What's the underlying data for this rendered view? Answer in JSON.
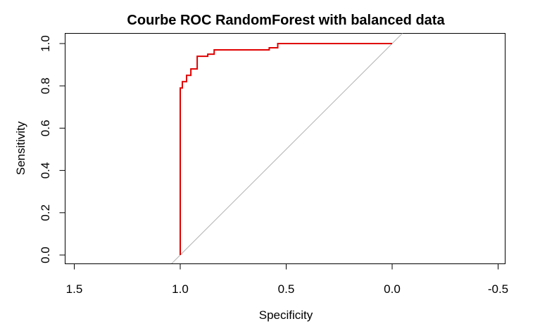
{
  "chart_data": {
    "type": "line",
    "title": "Courbe ROC RandomForest with balanced data",
    "xlabel": "Specificity",
    "ylabel": "Sensitivity",
    "x_reversed": true,
    "xlim": [
      1.5,
      -0.5
    ],
    "ylim": [
      0,
      1
    ],
    "x_ticks": [
      "1.5",
      "1.0",
      "0.5",
      "0.0",
      "-0.5"
    ],
    "y_ticks": [
      "0.0",
      "0.2",
      "0.4",
      "0.6",
      "0.8",
      "1.0"
    ],
    "series": [
      {
        "color": "#e00000",
        "specificity": [
          1.0,
          1.0,
          1.0,
          0.99,
          0.99,
          0.97,
          0.97,
          0.95,
          0.95,
          0.92,
          0.92,
          0.87,
          0.87,
          0.84,
          0.84,
          0.58,
          0.58,
          0.54,
          0.54,
          0.0
        ],
        "sensitivity": [
          0.0,
          0.79,
          0.79,
          0.79,
          0.82,
          0.82,
          0.85,
          0.85,
          0.88,
          0.88,
          0.94,
          0.94,
          0.95,
          0.95,
          0.97,
          0.97,
          0.98,
          0.98,
          1.0,
          1.0
        ]
      }
    ],
    "reference_line": {
      "color": "#b3b3b3",
      "specificity": [
        1.0,
        0.0
      ],
      "sensitivity": [
        0.0,
        1.0
      ]
    }
  }
}
